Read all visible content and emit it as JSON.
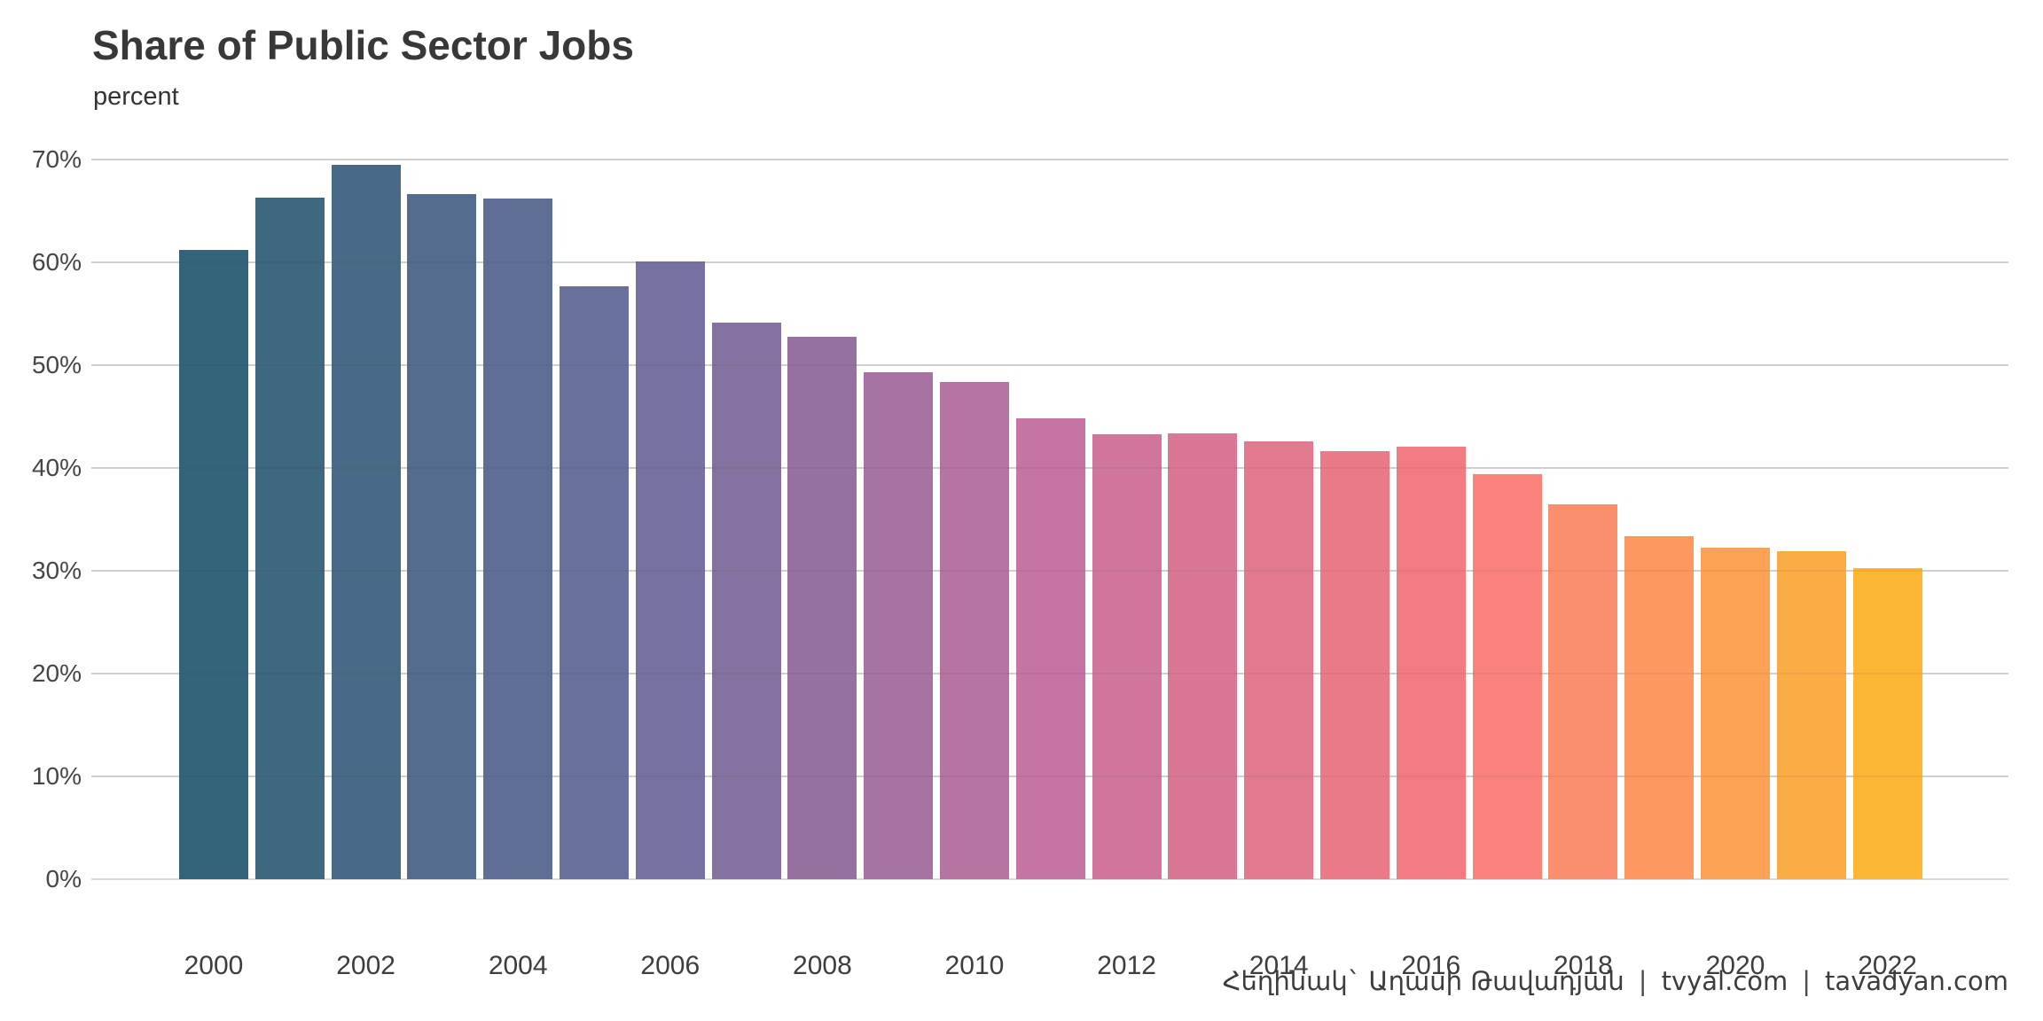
{
  "header": {
    "title": "Share of Public Sector Jobs",
    "subtitle": "percent"
  },
  "caption": {
    "separator": "|",
    "parts": [
      "Հեղինակ` Աղասի Թավադյան",
      "tvyal.com",
      "tavadyan.com"
    ]
  },
  "chart_data": {
    "type": "bar",
    "title": "Share of Public Sector Jobs",
    "xlabel": "",
    "ylabel": "percent",
    "grid": "horizontal-major-only",
    "legend": "none",
    "ylim": [
      0,
      73
    ],
    "categories": [
      2000,
      2001,
      2002,
      2003,
      2004,
      2005,
      2006,
      2007,
      2008,
      2009,
      2010,
      2011,
      2012,
      2013,
      2014,
      2015,
      2016,
      2017,
      2018,
      2019,
      2020,
      2021,
      2022
    ],
    "values": [
      61.2,
      66.3,
      69.5,
      66.6,
      66.2,
      57.7,
      60.1,
      54.1,
      52.8,
      49.3,
      48.4,
      44.8,
      43.3,
      43.4,
      42.6,
      41.6,
      42.1,
      39.4,
      36.5,
      33.4,
      32.2,
      31.9,
      30.3
    ],
    "bar_colors": [
      "#336479",
      "#3E6780",
      "#496A87",
      "#546C8E",
      "#5F6E95",
      "#69709C",
      "#7671A0",
      "#8672A1",
      "#9672A1",
      "#A673A2",
      "#B674A2",
      "#C674A3",
      "#D0769C",
      "#D97795",
      "#E2798E",
      "#EA7A88",
      "#F17B81",
      "#F9827B",
      "#FB8E6E",
      "#FC9860",
      "#FCA254",
      "#FCAC45",
      "#FDB535"
    ],
    "ytick_values": [
      0,
      10,
      20,
      30,
      40,
      50,
      60,
      70
    ],
    "ytick_labels": [
      "0%",
      "10%",
      "20%",
      "30%",
      "40%",
      "50%",
      "60%",
      "70%"
    ],
    "xtick_labels": [
      "2000",
      "2002",
      "2004",
      "2006",
      "2008",
      "2010",
      "2012",
      "2014",
      "2016",
      "2018",
      "2020",
      "2022"
    ],
    "gridline_color": "#dbdbdb",
    "background_color": "#ffffff",
    "title_color": "#383838",
    "tick_label_color": "#454545"
  }
}
